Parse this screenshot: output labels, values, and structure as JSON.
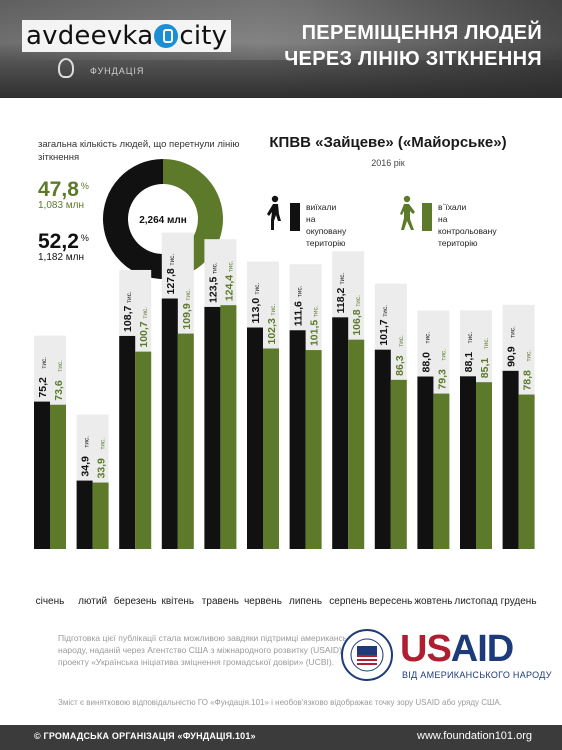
{
  "header": {
    "brand": "avdeevka",
    "brand_suffix": "city",
    "fund_name": "ФУНДАЦІЯ",
    "title_line1": "ПЕРЕМІЩЕННЯ ЛЮДЕЙ",
    "title_line2": "ЧЕРЕЗ ЛІНІЮ ЗІТКНЕННЯ"
  },
  "totals": {
    "label": "загальна кількість людей, що перетнули лінію зіткнення",
    "green_pct": "47,8",
    "green_amount": "1,083 млн",
    "black_pct": "52,2",
    "black_amount": "1,182 млн",
    "pct_sign": "%",
    "center_label": "2,264 млн",
    "green_share": 0.478,
    "black_share": 0.522
  },
  "checkpoint": {
    "title": "КПВВ «Зайцеве» («Майорське»)",
    "year": "2016 рік"
  },
  "legend": {
    "left_line1": "виїхали",
    "left_line2": "на окуповану",
    "left_line3": "територію",
    "right_line1": "в`їхали",
    "right_line2": "на контрольовану",
    "right_line3": "територію"
  },
  "colors": {
    "green": "#5d7a2b",
    "black": "#111111",
    "column_bg": "#ececec"
  },
  "chart_data": {
    "type": "bar",
    "unit": "тис.",
    "categories": [
      "січень",
      "лютий",
      "березень",
      "квітень",
      "травень",
      "червень",
      "липень",
      "серпень",
      "вересень",
      "жовтень",
      "листопад",
      "грудень"
    ],
    "series": [
      {
        "name": "виїхали на окуповану територію",
        "values": [
          75.2,
          34.9,
          108.7,
          127.8,
          123.5,
          113.0,
          111.6,
          118.2,
          101.7,
          88.0,
          88.1,
          90.9
        ],
        "labels": [
          "75,2",
          "34,9",
          "108,7",
          "127,8",
          "123,5",
          "113,0",
          "111,6",
          "118,2",
          "101,7",
          "88,0",
          "88,1",
          "90,9"
        ]
      },
      {
        "name": "в`їхали на контрольовану територію",
        "values": [
          73.6,
          33.9,
          100.7,
          109.9,
          124.4,
          102.3,
          101.5,
          106.8,
          86.3,
          79.3,
          85.1,
          78.8
        ],
        "labels": [
          "73,6",
          "33,9",
          "100,7",
          "109,9",
          "124,4",
          "102,3",
          "101,5",
          "106,8",
          "86,3",
          "79,3",
          "85,1",
          "78,8"
        ]
      }
    ]
  },
  "footer": {
    "note": "Підготовка цієї публікації стала можливою завдяки підтримці американського народу, наданій через Агентство США з міжнародного розвитку (USAID) в рамках проекту «Українська ініціатива зміцнення громадської довіри» (UCBI).",
    "usaid_us": "US",
    "usaid_aid": "AID",
    "usaid_sub": "ВІД АМЕРИКАНСЬКОГО НАРОДУ",
    "disclaimer": "Зміст є винятковою відповідальністю ГО «Фундація.101» і необов'язково відображає точку зору USAID або уряду США.",
    "organization": "© ГРОМАДСЬКА ОРГАНІЗАЦІЯ «ФУНДАЦІЯ.101»",
    "website": "www.foundation101.org"
  }
}
